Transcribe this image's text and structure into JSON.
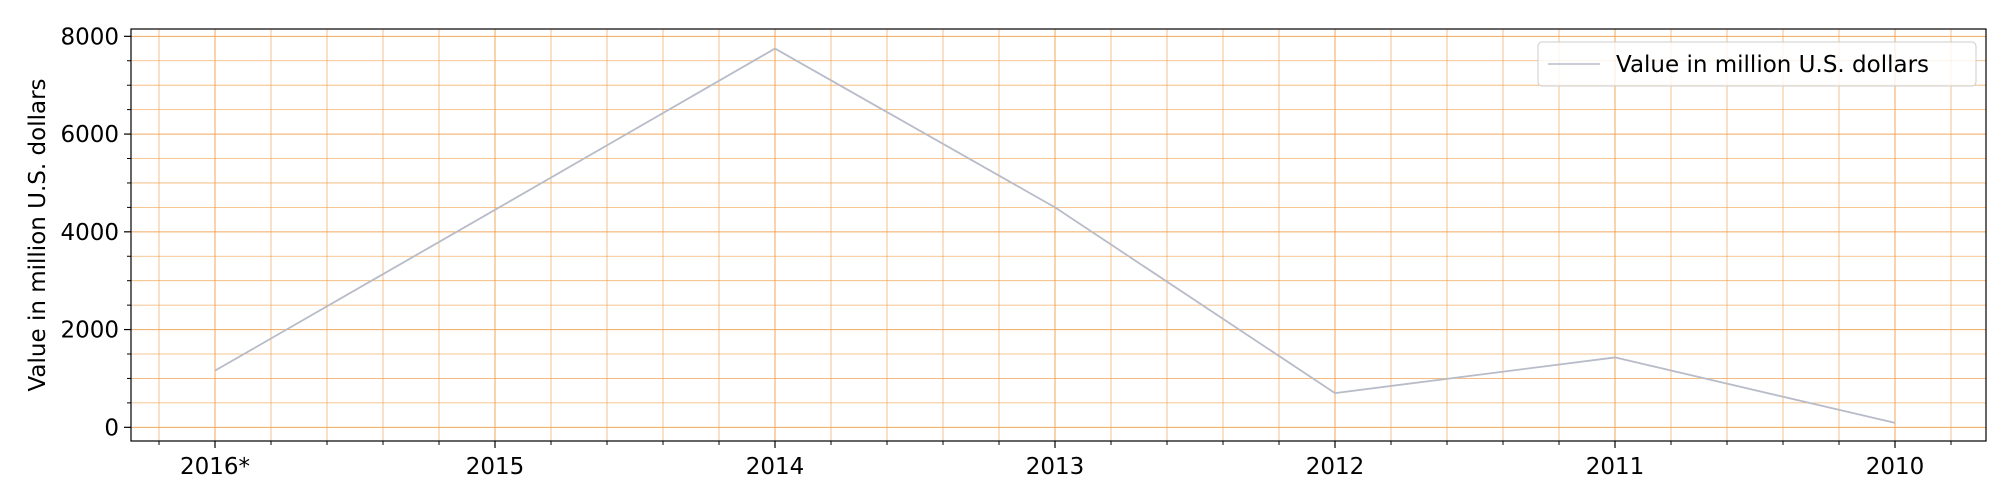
{
  "chart_data": {
    "type": "line",
    "title": "",
    "xlabel": "",
    "ylabel": "Value in million U.S. dollars",
    "categories": [
      "2016*",
      "2015",
      "2014",
      "2013",
      "2012",
      "2011",
      "2010"
    ],
    "series": [
      {
        "name": "Value in million U.S. dollars",
        "values": [
          1160,
          4450,
          7750,
          4500,
          700,
          1430,
          90
        ],
        "color": "#b8bcc8"
      }
    ],
    "ylim": [
      -280,
      8150
    ],
    "yticks": [
      0,
      2000,
      4000,
      6000,
      8000
    ],
    "grid": true,
    "grid_color": "#f0a04b",
    "legend_position": "upper right"
  }
}
